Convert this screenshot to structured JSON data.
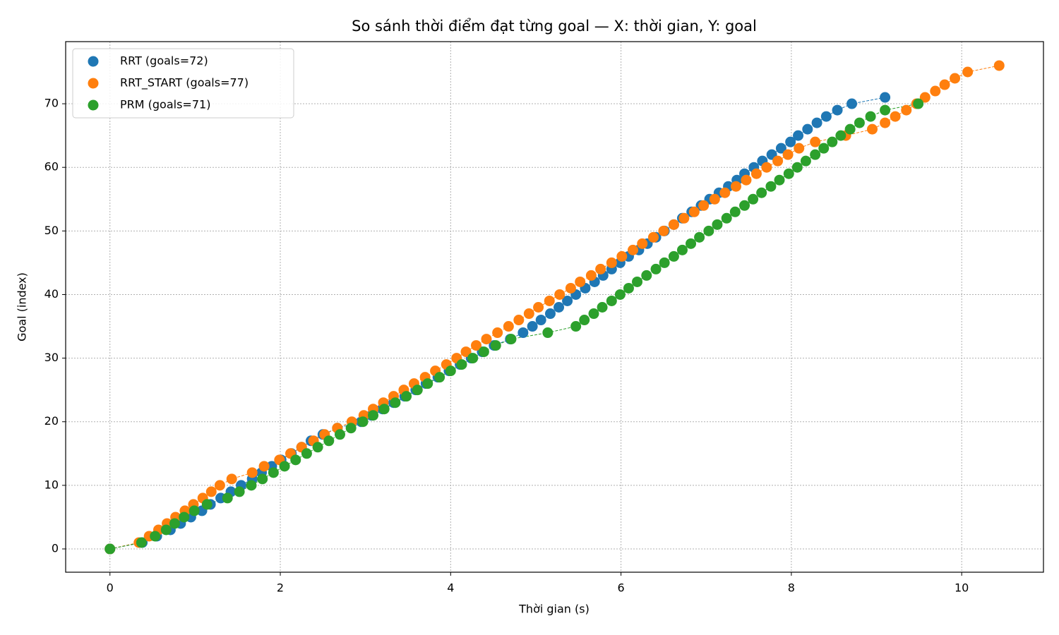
{
  "chart_data": {
    "type": "scatter",
    "title": "So sánh thời điểm đạt từng goal — X: thời gian, Y: goal",
    "xlabel": "Thời gian (s)",
    "ylabel": "Goal (index)",
    "xlim": [
      -0.52,
      10.96
    ],
    "ylim": [
      -3.66,
      79.77
    ],
    "xticks": [
      0,
      2,
      4,
      6,
      8,
      10
    ],
    "yticks": [
      0,
      10,
      20,
      30,
      40,
      50,
      60,
      70
    ],
    "grid": true,
    "legend": "upper left",
    "connect": "dashed",
    "series": [
      {
        "name": "RRT (goals=72)",
        "color": "#1f77b4",
        "x": [
          0,
          0.38,
          0.55,
          0.71,
          0.83,
          0.95,
          1.08,
          1.18,
          1.3,
          1.42,
          1.54,
          1.67,
          1.78,
          1.9,
          2.01,
          2.13,
          2.25,
          2.36,
          2.5,
          2.67,
          2.95,
          3.07,
          3.2,
          3.33,
          3.46,
          3.59,
          3.71,
          3.85,
          3.98,
          4.11,
          4.24,
          4.37,
          4.51,
          4.7,
          4.85,
          4.96,
          5.06,
          5.17,
          5.27,
          5.37,
          5.47,
          5.58,
          5.69,
          5.79,
          5.89,
          5.99,
          6.09,
          6.21,
          6.31,
          6.41,
          6.51,
          6.62,
          6.72,
          6.83,
          6.94,
          7.04,
          7.15,
          7.26,
          7.36,
          7.45,
          7.56,
          7.66,
          7.77,
          7.88,
          7.99,
          8.08,
          8.19,
          8.3,
          8.41,
          8.54,
          8.71,
          9.1
        ],
        "values": [
          0,
          1,
          2,
          3,
          4,
          5,
          6,
          7,
          8,
          9,
          10,
          11,
          12,
          13,
          14,
          15,
          16,
          17,
          18,
          19,
          20,
          21,
          22,
          23,
          24,
          25,
          26,
          27,
          28,
          29,
          30,
          31,
          32,
          33,
          34,
          35,
          36,
          37,
          38,
          39,
          40,
          41,
          42,
          43,
          44,
          45,
          46,
          47,
          48,
          49,
          50,
          51,
          52,
          53,
          54,
          55,
          56,
          57,
          58,
          59,
          60,
          61,
          62,
          63,
          64,
          65,
          66,
          67,
          68,
          69,
          70,
          71
        ]
      },
      {
        "name": "RRT_START (goals=77)",
        "color": "#ff7f0e",
        "x": [
          0,
          0.34,
          0.46,
          0.57,
          0.67,
          0.77,
          0.88,
          0.98,
          1.09,
          1.19,
          1.29,
          1.43,
          1.67,
          1.81,
          1.99,
          2.12,
          2.25,
          2.39,
          2.52,
          2.67,
          2.84,
          2.98,
          3.09,
          3.21,
          3.33,
          3.45,
          3.57,
          3.7,
          3.82,
          3.95,
          4.07,
          4.18,
          4.3,
          4.42,
          4.55,
          4.68,
          4.8,
          4.92,
          5.03,
          5.16,
          5.28,
          5.41,
          5.52,
          5.65,
          5.76,
          5.89,
          6.01,
          6.14,
          6.25,
          6.38,
          6.5,
          6.62,
          6.74,
          6.86,
          6.97,
          7.1,
          7.22,
          7.35,
          7.47,
          7.59,
          7.71,
          7.84,
          7.96,
          8.09,
          8.28,
          8.64,
          8.95,
          9.1,
          9.22,
          9.35,
          9.47,
          9.57,
          9.69,
          9.8,
          9.92,
          10.07,
          10.44
        ],
        "values": [
          0,
          1,
          2,
          3,
          4,
          5,
          6,
          7,
          8,
          9,
          10,
          11,
          12,
          13,
          14,
          15,
          16,
          17,
          18,
          19,
          20,
          21,
          22,
          23,
          24,
          25,
          26,
          27,
          28,
          29,
          30,
          31,
          32,
          33,
          34,
          35,
          36,
          37,
          38,
          39,
          40,
          41,
          42,
          43,
          44,
          45,
          46,
          47,
          48,
          49,
          50,
          51,
          52,
          53,
          54,
          55,
          56,
          57,
          58,
          59,
          60,
          61,
          62,
          63,
          64,
          65,
          66,
          67,
          68,
          69,
          70,
          71,
          72,
          73,
          74,
          75,
          76
        ]
      },
      {
        "name": "PRM (goals=71)",
        "color": "#2ca02c",
        "x": [
          0,
          0.37,
          0.53,
          0.66,
          0.76,
          0.87,
          0.99,
          1.14,
          1.38,
          1.52,
          1.66,
          1.79,
          1.92,
          2.05,
          2.18,
          2.31,
          2.44,
          2.57,
          2.7,
          2.83,
          2.97,
          3.09,
          3.22,
          3.35,
          3.48,
          3.61,
          3.73,
          3.87,
          4.0,
          4.13,
          4.26,
          4.39,
          4.53,
          4.71,
          5.14,
          5.47,
          5.57,
          5.68,
          5.78,
          5.89,
          5.99,
          6.09,
          6.19,
          6.3,
          6.41,
          6.51,
          6.62,
          6.72,
          6.82,
          6.92,
          7.03,
          7.13,
          7.24,
          7.34,
          7.45,
          7.55,
          7.65,
          7.76,
          7.86,
          7.97,
          8.07,
          8.17,
          8.28,
          8.38,
          8.48,
          8.58,
          8.69,
          8.8,
          8.93,
          9.1,
          9.49
        ],
        "values": [
          0,
          1,
          2,
          3,
          4,
          5,
          6,
          7,
          8,
          9,
          10,
          11,
          12,
          13,
          14,
          15,
          16,
          17,
          18,
          19,
          20,
          21,
          22,
          23,
          24,
          25,
          26,
          27,
          28,
          29,
          30,
          31,
          32,
          33,
          34,
          35,
          36,
          37,
          38,
          39,
          40,
          41,
          42,
          43,
          44,
          45,
          46,
          47,
          48,
          49,
          50,
          51,
          52,
          53,
          54,
          55,
          56,
          57,
          58,
          59,
          60,
          61,
          62,
          63,
          64,
          65,
          66,
          67,
          68,
          69,
          70
        ]
      }
    ]
  }
}
